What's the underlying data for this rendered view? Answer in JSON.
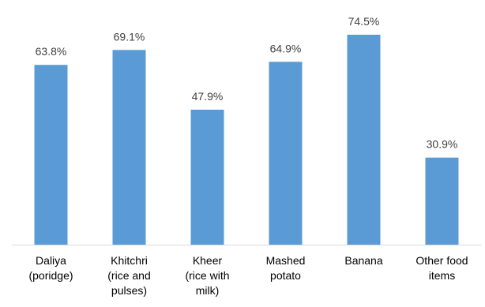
{
  "chart_data": {
    "type": "bar",
    "title": "",
    "xlabel": "",
    "ylabel": "",
    "categories": [
      [
        "Daliya",
        "(poridge)"
      ],
      [
        "Khitchri",
        "(rice and",
        "pulses)"
      ],
      [
        "Kheer",
        "(rice with",
        "milk)"
      ],
      [
        "Mashed",
        "potato"
      ],
      [
        "Banana"
      ],
      [
        "Other food",
        "items"
      ]
    ],
    "values": [
      63.8,
      69.1,
      47.9,
      64.9,
      74.5,
      30.9
    ],
    "value_labels": [
      "63.8%",
      "69.1%",
      "47.9%",
      "64.9%",
      "74.5%",
      "30.9%"
    ],
    "ylim": [
      0,
      80
    ],
    "grid": false,
    "legend": "none",
    "colors": {
      "bar": "#5B9BD5",
      "axis": "#D9D9D9",
      "label": "#404040"
    }
  }
}
